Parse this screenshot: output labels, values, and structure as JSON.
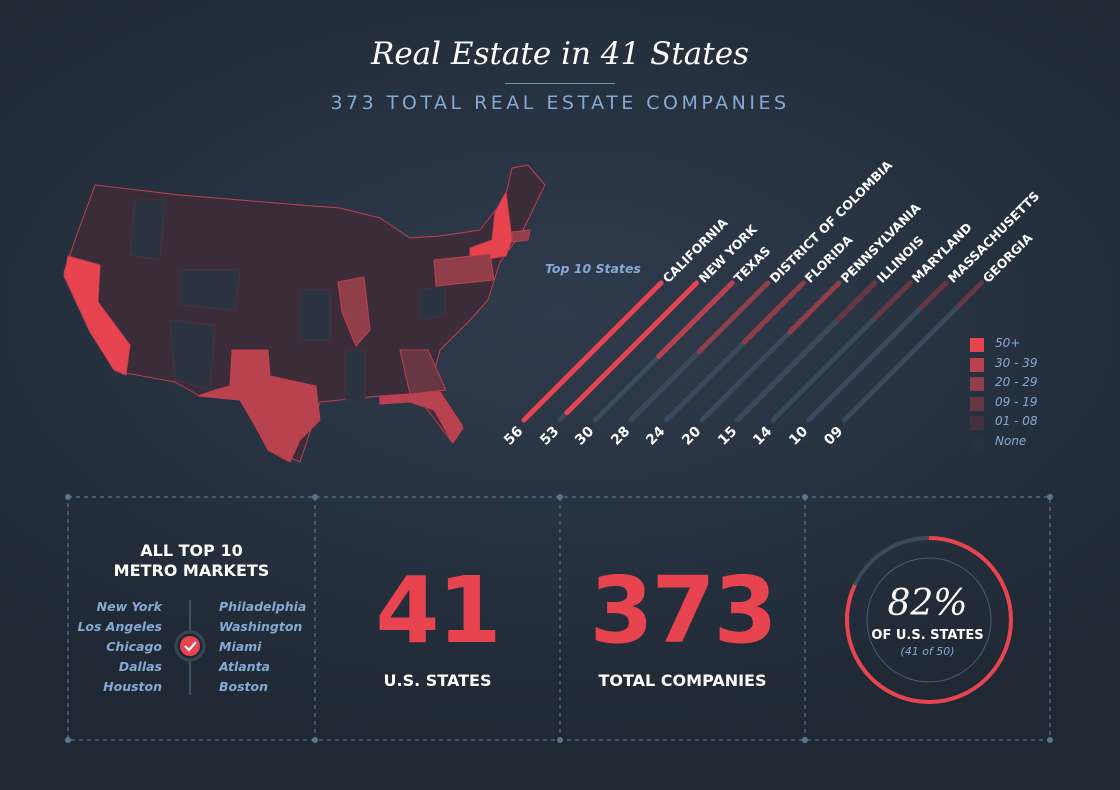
{
  "header": {
    "title": "Real Estate in 41 States",
    "subtitle": "373 TOTAL REAL ESTATE COMPANIES"
  },
  "chart_data": {
    "type": "bar",
    "title": "Top 10 States",
    "categories": [
      "CALIFORNIA",
      "NEW YORK",
      "TEXAS",
      "DISTRICT OF COLOMBIA",
      "FLORIDA",
      "PENNSYLVANIA",
      "ILLINOIS",
      "MARYLAND",
      "MASSACHUSETTS",
      "GEORGIA"
    ],
    "values": [
      56,
      53,
      30,
      28,
      24,
      20,
      15,
      14,
      10,
      9
    ],
    "value_labels": [
      "56",
      "53",
      "30",
      "28",
      "24",
      "20",
      "15",
      "14",
      "10",
      "09"
    ],
    "ylim": [
      0,
      56
    ],
    "orientation": "diagonal",
    "legend": [
      {
        "label": "50+",
        "color": "#e8444f"
      },
      {
        "label": "30 - 39",
        "color": "#b8424d"
      },
      {
        "label": "20 - 29",
        "color": "#8f3e4a"
      },
      {
        "label": "09 - 19",
        "color": "#673744"
      },
      {
        "label": "01 - 08",
        "color": "#44303c"
      },
      {
        "label": "None",
        "color": "#28313e"
      }
    ],
    "legend_position": "bottom-right"
  },
  "stats": {
    "metro_title_1": "ALL TOP 10",
    "metro_title_2": "METRO MARKETS",
    "metros_left": [
      "New York",
      "Los Angeles",
      "Chicago",
      "Dallas",
      "Houston"
    ],
    "metros_right": [
      "Philadelphia",
      "Washington",
      "Miami",
      "Atlanta",
      "Boston"
    ],
    "states_value": "41",
    "states_label": "U.S. STATES",
    "companies_value": "373",
    "companies_label": "TOTAL COMPANIES",
    "percent_value": "82%",
    "percent_fraction": 0.82,
    "percent_label": "OF U.S. STATES",
    "percent_sub": "(41 of 50)"
  },
  "colors": {
    "accent": "#e8444f",
    "text_blue": "#86a9d3",
    "track": "#3b4a5c"
  }
}
